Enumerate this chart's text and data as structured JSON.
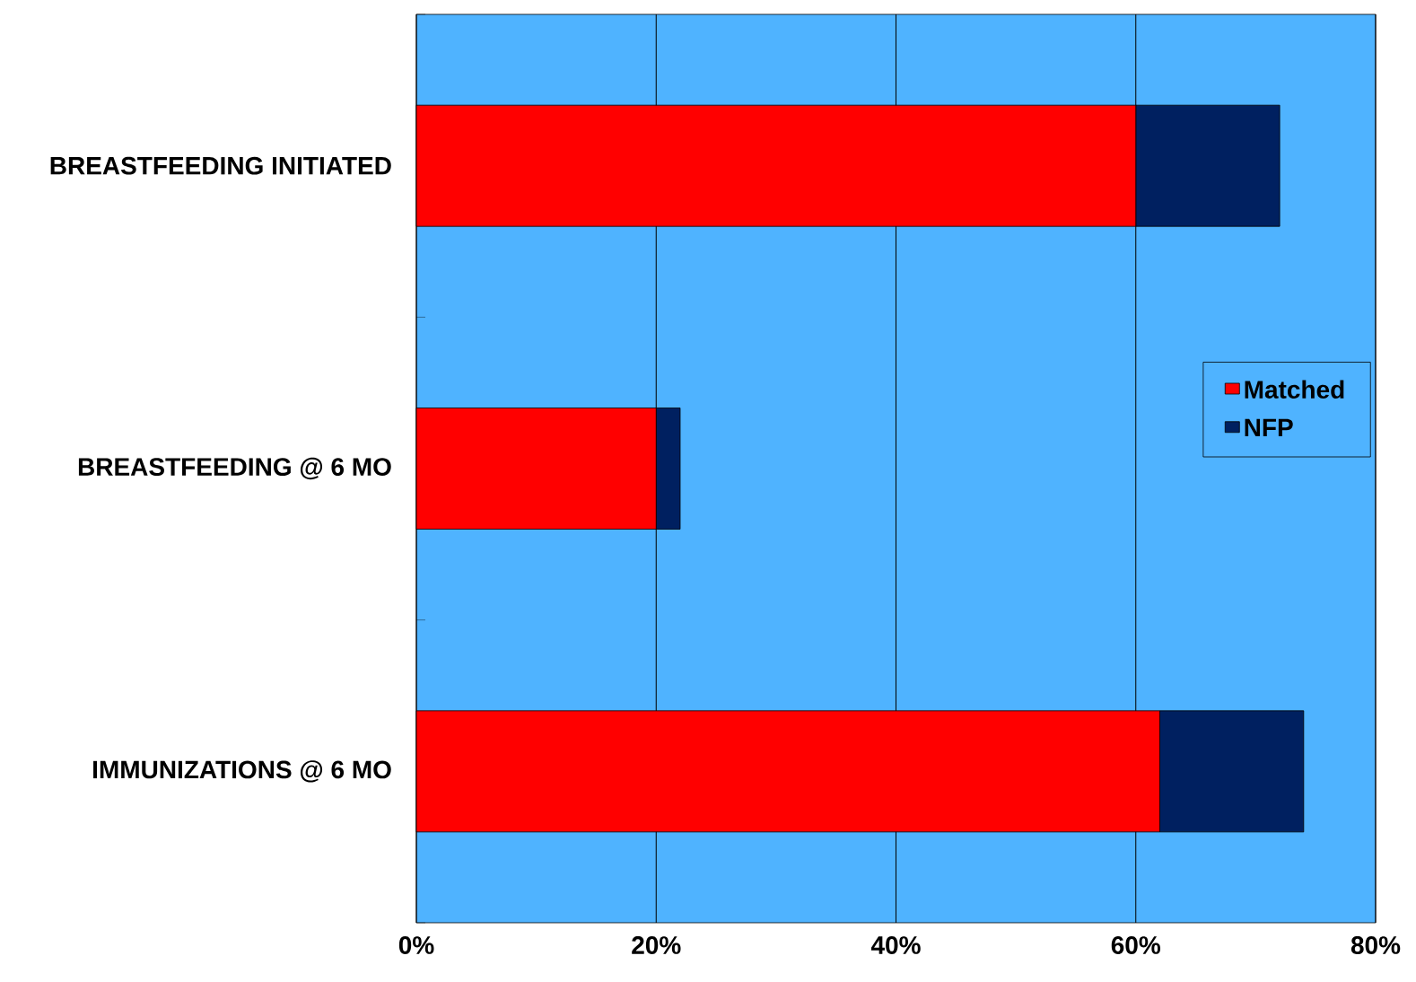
{
  "chart_data": {
    "type": "bar",
    "orientation": "horizontal",
    "stacked": true,
    "categories": [
      "BREASTFEEDING INITIATED",
      "BREASTFEEDING  @ 6 MO",
      "IMMUNIZATIONS @ 6 MO"
    ],
    "series": [
      {
        "name": "Matched",
        "color": "#ff0000",
        "values": [
          60,
          20,
          62
        ]
      },
      {
        "name": "NFP",
        "color": "#002060",
        "values": [
          12,
          2,
          12
        ]
      }
    ],
    "xlim": [
      0,
      80
    ],
    "xticks": [
      {
        "value": 0,
        "label": "0%"
      },
      {
        "value": 20,
        "label": "20%"
      },
      {
        "value": 40,
        "label": "40%"
      },
      {
        "value": 60,
        "label": "60%"
      },
      {
        "value": 80,
        "label": "80%"
      }
    ],
    "grid": "x",
    "legend": "right"
  }
}
